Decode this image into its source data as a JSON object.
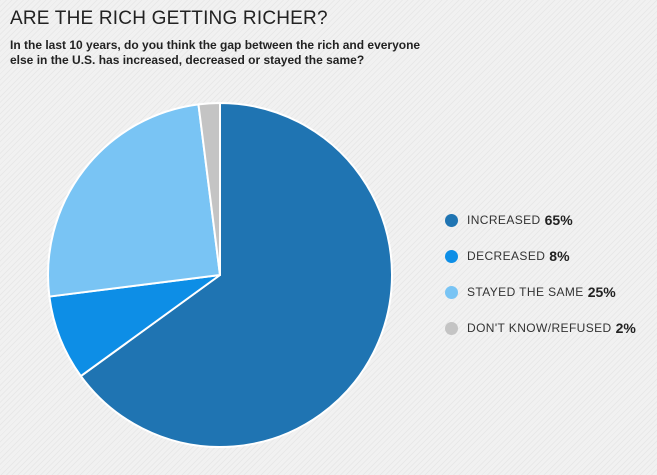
{
  "title": "ARE THE RICH GETTING RICHER?",
  "subtitle": "In the last 10 years, do you think the gap between the rich and everyone else in the U.S. has increased, decreased or stayed the same?",
  "chart_data": {
    "type": "pie",
    "title": "ARE THE RICH GETTING RICHER?",
    "subtitle": "In the last 10 years, do you think the gap between the rich and everyone else in the U.S. has increased, decreased or stayed the same?",
    "legend_position": "right",
    "slices": [
      {
        "label": "INCREASED",
        "value": 65,
        "value_label": "65%",
        "color": "#1f74b2"
      },
      {
        "label": "DECREASED",
        "value": 8,
        "value_label": "8%",
        "color": "#0d8ee6"
      },
      {
        "label": "STAYED THE SAME",
        "value": 25,
        "value_label": "25%",
        "color": "#79c4f4"
      },
      {
        "label": "DON'T KNOW/REFUSED",
        "value": 2,
        "value_label": "2%",
        "color": "#c4c4c4"
      }
    ]
  }
}
